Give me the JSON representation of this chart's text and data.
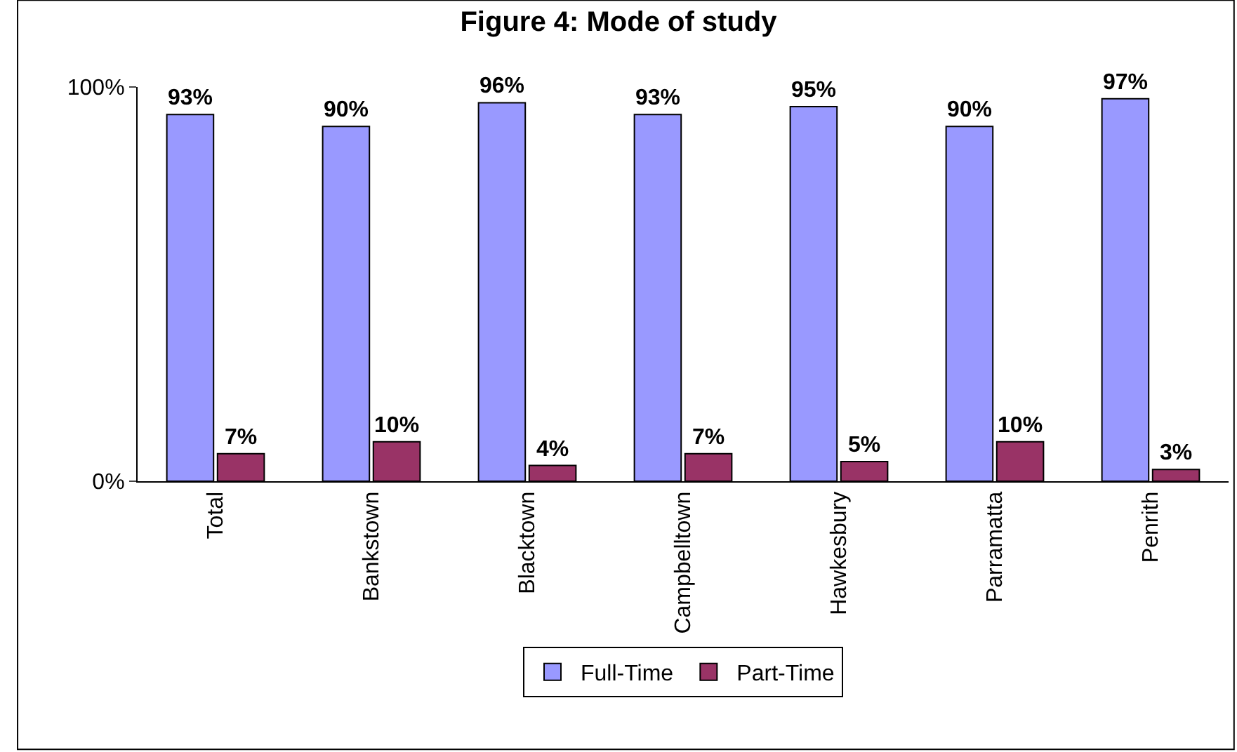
{
  "chart_data": {
    "type": "bar",
    "title": "Figure 4: Mode of study",
    "categories": [
      "Total",
      "Bankstown",
      "Blacktown",
      "Campbelltown",
      "Hawkesbury",
      "Parramatta",
      "Penrith"
    ],
    "series": [
      {
        "name": "Full-Time",
        "color": "#9999ff",
        "values": [
          93,
          90,
          96,
          93,
          95,
          90,
          97
        ],
        "value_labels": [
          "93%",
          "90%",
          "96%",
          "93%",
          "95%",
          "90%",
          "97%"
        ]
      },
      {
        "name": "Part-Time",
        "color": "#993366",
        "values": [
          7,
          10,
          4,
          7,
          5,
          10,
          3
        ],
        "value_labels": [
          "7%",
          "10%",
          "4%",
          "7%",
          "5%",
          "10%",
          "3%"
        ]
      }
    ],
    "ylim": [
      0,
      100
    ],
    "yticks": [
      {
        "value": 0,
        "label": "0%"
      },
      {
        "value": 100,
        "label": "100%"
      }
    ],
    "legend": "bottom"
  }
}
